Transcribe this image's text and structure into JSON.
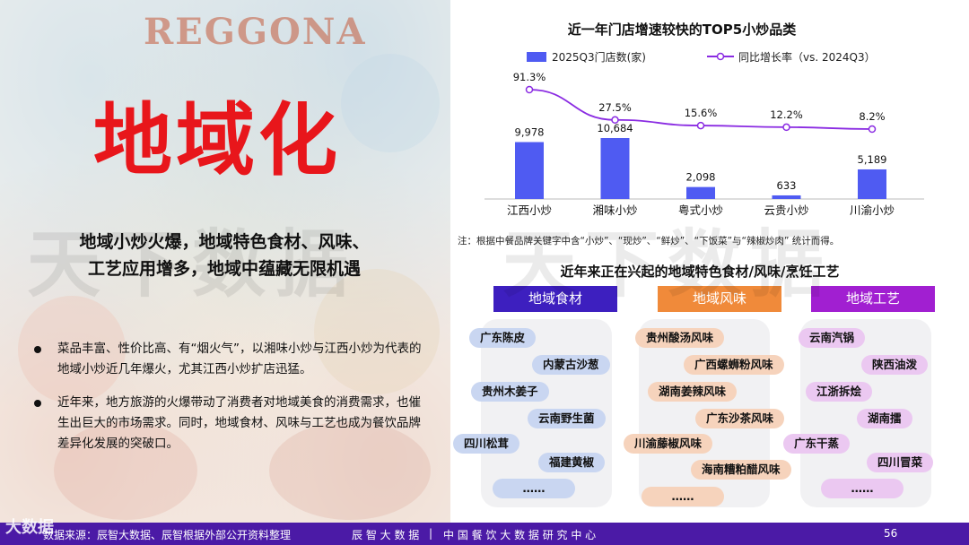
{
  "left": {
    "logo_text": "REGGONA",
    "big_title": "地域化",
    "subtitle_line1": "地域小炒火爆，地域特色食材、风味、",
    "subtitle_line2": "工艺应用增多，地域中蕴藏无限机遇",
    "bullets": [
      "菜品丰富、性价比高、有“烟火气”，以湘味小炒与江西小炒为代表的地域小炒近几年爆火，尤其江西小炒扩店迅猛。",
      "近年来，地方旅游的火爆带动了消费者对地域美食的消费需求，也催生出巨大的市场需求。同时，地域食材、风味与工艺也成为餐饮品牌差异化发展的突破口。"
    ]
  },
  "chart_data": {
    "type": "bar+line",
    "title": "近一年门店增速较快的TOP5小炒品类",
    "categories": [
      "江西小炒",
      "湘味小炒",
      "粤式小炒",
      "云贵小炒",
      "川渝小炒"
    ],
    "series": [
      {
        "name": "2025Q3门店数(家)",
        "type": "bar",
        "values": [
          9978,
          10684,
          2098,
          633,
          5189
        ],
        "labels": [
          "9,978",
          "10,684",
          "2,098",
          "633",
          "5,189"
        ],
        "color": "#4f5bf2"
      },
      {
        "name": "同比增长率（vs. 2024Q3）",
        "type": "line",
        "values": [
          91.3,
          27.5,
          15.6,
          12.2,
          8.2
        ],
        "labels": [
          "91.3%",
          "27.5%",
          "15.6%",
          "12.2%",
          "8.2%"
        ],
        "color": "#8a2be2"
      }
    ],
    "legend_placement": "top",
    "note": "注：根据中餐品牌关键字中含“小炒”、“现炒”、“鲜炒”、“下饭菜”与“辣椒炒肉” 统计而得。"
  },
  "regional": {
    "title": "近年来正在兴起的地域特色食材/风味/烹饪工艺",
    "columns": [
      {
        "header": "地域食材",
        "color": "#3d1fbf",
        "items": [
          "广东陈皮",
          "内蒙古沙葱",
          "贵州木姜子",
          "云南野生菌",
          "四川松茸",
          "福建黄椒",
          "……"
        ]
      },
      {
        "header": "地域风味",
        "color": "#f08a3a",
        "items": [
          "贵州酸汤风味",
          "广西螺蛳粉风味",
          "湖南姜辣风味",
          "广东沙茶风味",
          "川渝藤椒风味",
          "海南糟粕醋风味",
          "……"
        ]
      },
      {
        "header": "地域工艺",
        "color": "#a11fd1",
        "items": [
          "云南汽锅",
          "陕西油泼",
          "江浙拆烩",
          "湖南擂",
          "广东干蒸",
          "四川冒菜",
          "……"
        ]
      }
    ]
  },
  "footer": {
    "source": "数据来源：辰智大数据、辰智根据外部公开资料整理",
    "brand": "辰 智 大 数 据",
    "separator": "|",
    "center": "中 国 餐 饮 大 数 据 研 究 中 心",
    "page": "56"
  },
  "watermark": {
    "brand_mark": "天下数据",
    "logo": "大数据"
  }
}
